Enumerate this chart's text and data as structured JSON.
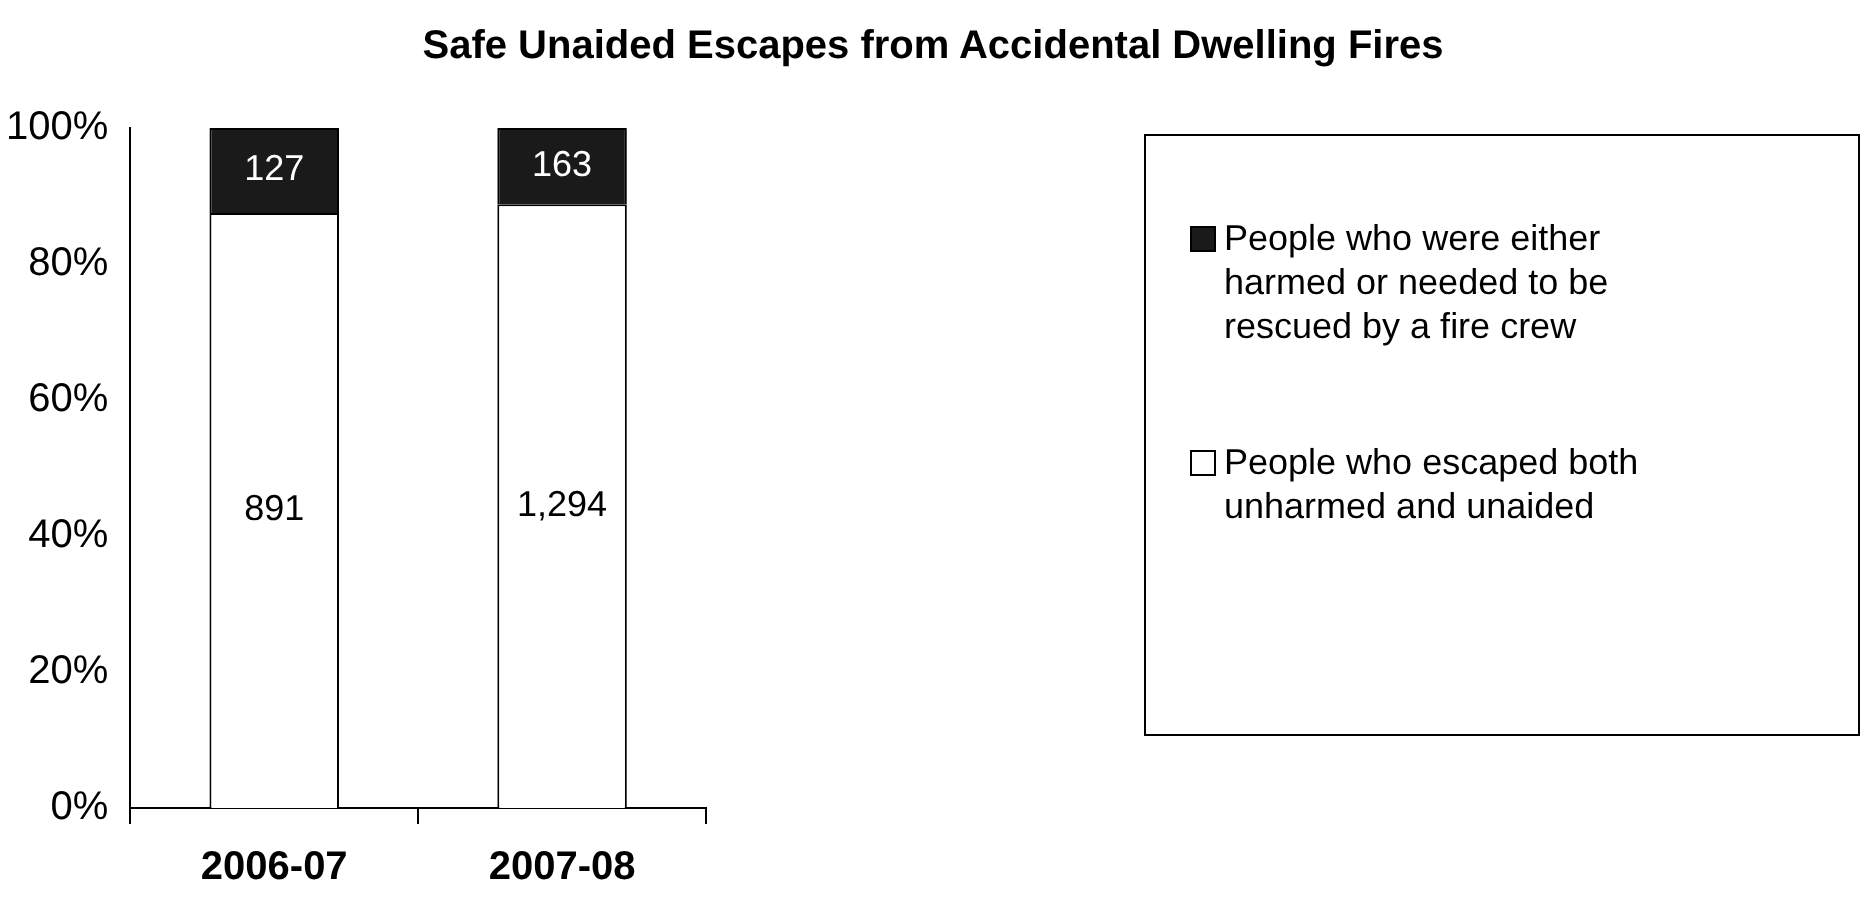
{
  "chart_data": {
    "type": "bar",
    "title": "Safe Unaided Escapes from Accidental Dwelling Fires",
    "categories": [
      "2006-07",
      "2007-08"
    ],
    "stacked": true,
    "series": [
      {
        "name": "People who escaped both unharmed and unaided",
        "color": "#ffffff",
        "values": [
          87.5,
          88.8
        ]
      },
      {
        "name": "People who were either harmed or needed to be rescued by a fire crew",
        "color": "#1a1a1a",
        "values": [
          12.5,
          11.2
        ]
      }
    ],
    "annotations": [
      "891",
      "1,294",
      "127",
      "163"
    ],
    "ylim": [
      0,
      100
    ],
    "yticks": [
      {
        "value": 0,
        "label": "0%"
      },
      {
        "value": 20,
        "label": "20%"
      },
      {
        "value": 40,
        "label": "40%"
      },
      {
        "value": 60,
        "label": "60%"
      },
      {
        "value": 80,
        "label": "80%"
      },
      {
        "value": 100,
        "label": "100%"
      }
    ],
    "grid": false,
    "legend": "right"
  }
}
